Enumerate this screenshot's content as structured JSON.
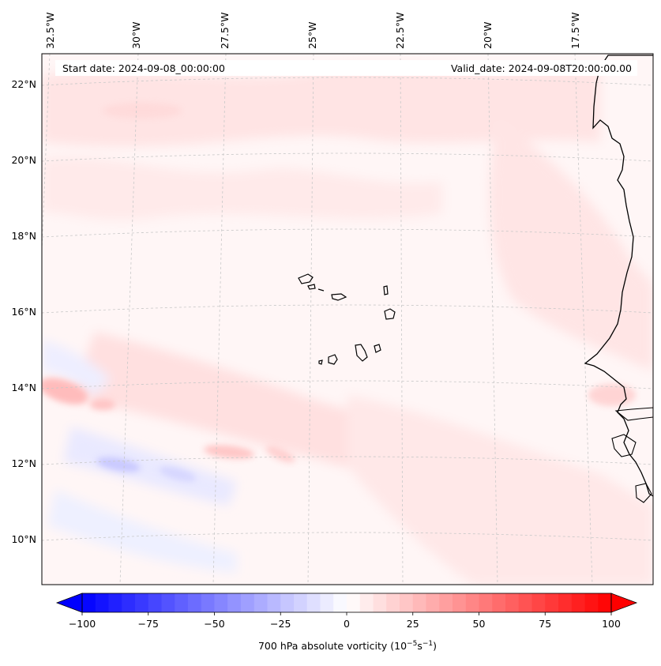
{
  "chart_data": {
    "type": "heatmap",
    "title": "700 hPa absolute vorticity",
    "start_date_label": "Start date: 2024-09-08_00:00:00",
    "valid_date_label": "Valid_date: 2024-09-08T20:00:00.00",
    "lon_ticks": [
      "32.5°W",
      "30°W",
      "27.5°W",
      "25°W",
      "22.5°W",
      "20°W",
      "17.5°W"
    ],
    "lat_ticks": [
      "22°N",
      "20°N",
      "18°N",
      "16°N",
      "14°N",
      "12°N",
      "10°N"
    ],
    "colorbar": {
      "label_prefix": "700 hPa absolute vorticity (10",
      "label_exp1": "−5",
      "label_mid": "s",
      "label_exp2": "−1",
      "label_suffix": ")",
      "ticks": [
        "−100",
        "−75",
        "−50",
        "−25",
        "0",
        "25",
        "50",
        "75",
        "100"
      ],
      "min": -100,
      "max": 100,
      "extend": "both",
      "colormap": "bwr"
    },
    "extent": {
      "lon_min": -32.6,
      "lon_max": -15.8,
      "lat_min": 8.8,
      "lat_max": 22.8
    }
  },
  "colors": {
    "background": "#fff7f7",
    "low": "#0000ff",
    "mid": "#ffffff",
    "high": "#ff0000",
    "coast": "#000000",
    "grid": "#c8c8c8"
  }
}
